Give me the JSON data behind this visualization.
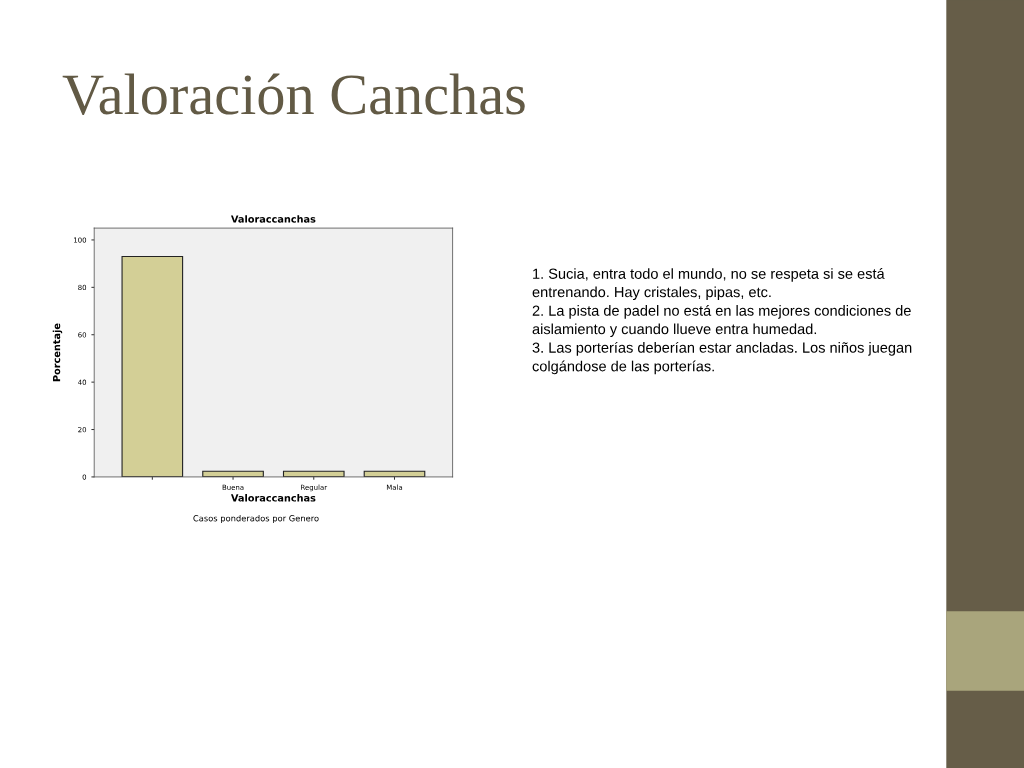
{
  "chart_data": {
    "type": "bar",
    "title": "Valoración Canchas",
    "subtitle": "Valoraccanchas",
    "xlabel": "Valoraccanchas",
    "ylabel": "Porcentaje",
    "categories": [
      null,
      "Buena",
      "Regular",
      "Mala"
    ],
    "values": [
      93,
      2.4,
      2.4,
      2.4
    ],
    "color": "#d3cf96",
    "ylim": [
      0,
      105
    ],
    "yticks": [
      0,
      20,
      40,
      60,
      80,
      100
    ],
    "grid": false,
    "annotations": [
      "Casos ponderados por Genero",
      "1. Sucia, entra todo el mundo, no se respeta si se está\nentrenando. Hay cristales, pipas, etc.\n2. La pista de padel no está en las mejores condiciones de\naislamiento y cuando llueve entra humedad.\n3. Las porterías deberían estar ancladas. Los niños juegan\ncolgándose de las porterías."
    ]
  }
}
